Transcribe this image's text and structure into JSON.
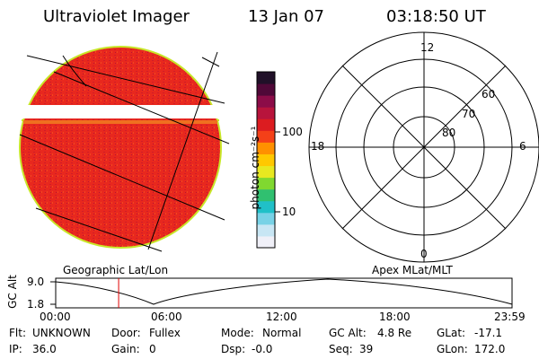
{
  "header": {
    "instrument": "Ultraviolet Imager",
    "date": "13 Jan 07",
    "time": "03:18:50 UT"
  },
  "colorbar": {
    "unit_label": "photon cm⁻²s⁻¹",
    "ticks": [
      "100",
      "10"
    ],
    "colors": [
      "#f0f0f8",
      "#c8e6f4",
      "#78d2e6",
      "#20c0c8",
      "#30c070",
      "#80d830",
      "#e8e820",
      "#ffc800",
      "#ff9000",
      "#f44018",
      "#dc1c20",
      "#b8143c",
      "#8c0c48",
      "#500838",
      "#201028"
    ]
  },
  "image_panel": {
    "label": "Geographic Lat/Lon",
    "fill_color": "#e8281e",
    "edge_color": "#c8e628"
  },
  "polar_panel": {
    "label": "Apex MLat/MLT",
    "mlt_labels": [
      "12",
      "18",
      "6",
      "0"
    ],
    "lat_labels": [
      "60",
      "70",
      "80"
    ]
  },
  "orbit_plot": {
    "ylabel": "GC Alt",
    "yticks": [
      "9.0",
      "1.8"
    ],
    "xticks": [
      "00:00",
      "06:00",
      "12:00",
      "18:00",
      "23:59"
    ],
    "marker_hour": 3.31,
    "marker_color": "#e00000"
  },
  "status": {
    "row1": [
      {
        "label": "Flt:",
        "value": "UNKNOWN"
      },
      {
        "label": "Door:",
        "value": "Fullex"
      },
      {
        "label": "Mode:",
        "value": "Normal"
      },
      {
        "label": "GC Alt:",
        "value": "4.8 Re"
      },
      {
        "label": "GLat:",
        "value": "-17.1"
      }
    ],
    "row2": [
      {
        "label": "IP:",
        "value": "36.0"
      },
      {
        "label": "Gain:",
        "value": "0"
      },
      {
        "label": "Dsp:",
        "value": "-0.0"
      },
      {
        "label": "Seq:",
        "value": "39"
      },
      {
        "label": "GLon:",
        "value": "172.0"
      }
    ]
  }
}
